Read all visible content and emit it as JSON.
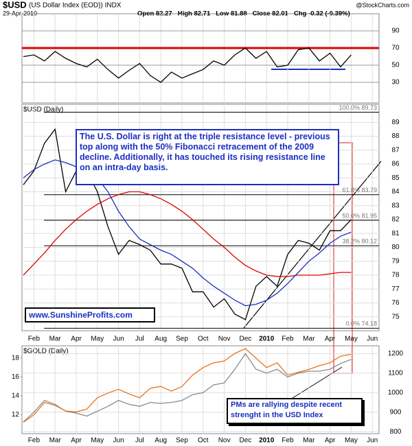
{
  "chart_data": [
    {
      "type": "line",
      "title": "$USD",
      "subtitle": "(US Dollar Index (EOD)) INDX",
      "date": "29-Apr-2010",
      "quote": [
        "Open 82.27",
        "High 82.71",
        "Low 81.88",
        "Close 82.01",
        "Chg -0.32 (-0.39%)"
      ],
      "source": "@StockCharts.com",
      "ylim": [
        6,
        110
      ],
      "yticks": [
        30,
        50,
        70,
        90
      ],
      "grid": true,
      "hlines": [
        {
          "value": 70,
          "color": "#e00000"
        }
      ],
      "series": [
        {
          "color": "#000000",
          "values": [
            60,
            62,
            55,
            66,
            58,
            52,
            48,
            57,
            45,
            35,
            44,
            52,
            38,
            30,
            42,
            35,
            40,
            45,
            55,
            50,
            62,
            70,
            58,
            66,
            48,
            50,
            68,
            70,
            55,
            64,
            48,
            62,
            null,
            null
          ]
        }
      ]
    },
    {
      "type": "line",
      "label": "$USD (Daily)",
      "categories": [
        null,
        "Feb",
        null,
        "Mar",
        null,
        "Apr",
        null,
        "May",
        null,
        "Jun",
        null,
        "Jul",
        null,
        "Aug",
        null,
        "Sep",
        null,
        "Oct",
        null,
        "Nov",
        null,
        "Dec",
        null,
        "2010",
        null,
        "Feb",
        null,
        "Mar",
        null,
        "Apr",
        null,
        "May",
        null,
        "Jun"
      ],
      "ylim": [
        74,
        90.3
      ],
      "yticks": [
        75,
        76,
        77,
        78,
        79,
        80,
        81,
        82,
        83,
        84,
        85,
        86,
        87,
        88,
        89
      ],
      "grid": true,
      "levels": [
        {
          "value": 89.73,
          "label": "100.0% 89.73"
        },
        {
          "value": 83.79,
          "label": "61.8% 83.79"
        },
        {
          "value": 81.95,
          "label": "50.0% 81.95"
        },
        {
          "value": 80.12,
          "label": "38.2% 80.12"
        },
        {
          "value": 74.18,
          "label": "0.0% 74.18"
        }
      ],
      "series": [
        {
          "color": "#000000",
          "values": [
            84.5,
            85.5,
            87.5,
            88.5,
            84.0,
            85.5,
            85.5,
            84.0,
            81.5,
            79.5,
            80.5,
            80.2,
            79.8,
            78.8,
            78.8,
            78.5,
            76.8,
            76.8,
            75.7,
            76.3,
            75.2,
            74.8,
            77.2,
            77.9,
            77.2,
            79.5,
            80.5,
            80.3,
            79.8,
            81.2,
            81.2,
            82.0,
            null,
            null
          ]
        },
        {
          "color": "#e00000",
          "values": [
            78,
            78.8,
            79.6,
            80.5,
            81.3,
            82.0,
            82.6,
            83.1,
            83.5,
            83.8,
            84.0,
            84.0,
            83.8,
            83.5,
            83.1,
            82.6,
            82.0,
            81.3,
            80.6,
            80.0,
            79.3,
            78.7,
            78.3,
            78.0,
            77.9,
            77.9,
            78.0,
            78.0,
            78.0,
            78.1,
            78.2,
            78.2,
            null,
            null
          ]
        },
        {
          "color": "#1a2fc0",
          "values": [
            85.0,
            85.6,
            86.0,
            86.3,
            86.1,
            85.8,
            85.5,
            85.0,
            84.0,
            82.6,
            81.5,
            80.6,
            80.2,
            79.8,
            79.5,
            79.0,
            78.5,
            77.8,
            77.2,
            76.7,
            76.2,
            75.8,
            75.9,
            76.2,
            76.7,
            77.4,
            78.2,
            79.0,
            79.6,
            80.3,
            80.8,
            81.1,
            null,
            null
          ]
        }
      ],
      "annotations": [
        "The U.S. Dollar is right at the triple resistance level - previous top along with the 50% Fibonacci retracement of the 2009 decline. Additionally, it has touched its rising resistance line on an intra-day basis.",
        "www.SunshineProfits.com"
      ]
    },
    {
      "type": "line",
      "label": "$GOLD (Daily)",
      "categories": [
        null,
        "Feb",
        null,
        "Mar",
        null,
        "Apr",
        null,
        "May",
        null,
        "Jun",
        null,
        "Jul",
        null,
        "Aug",
        null,
        "Sep",
        null,
        "Oct",
        null,
        "Nov",
        null,
        "Dec",
        null,
        "2010",
        null,
        "Feb",
        null,
        "Mar",
        null,
        "Apr",
        null,
        "May",
        null,
        "Jun"
      ],
      "ylim": [
        10,
        19.3
      ],
      "yticks": [
        12,
        14,
        16,
        18
      ],
      "y2lim": [
        790,
        1240
      ],
      "y2ticks": [
        800,
        900,
        1000,
        1100,
        1200
      ],
      "grid": true,
      "series": [
        {
          "color": "#8a8a8a",
          "axis": "y2",
          "values": [
            850,
            900,
            960,
            940,
            905,
            895,
            880,
            905,
            930,
            960,
            940,
            930,
            950,
            945,
            950,
            960,
            990,
            1000,
            1040,
            1050,
            1120,
            1200,
            1120,
            1100,
            1120,
            1080,
            1100,
            1110,
            1110,
            1120,
            1150,
            1170,
            null,
            null
          ]
        },
        {
          "color": "#e8741a",
          "values": [
            11.2,
            12.0,
            13.3,
            13.0,
            12.4,
            12.3,
            12.6,
            13.8,
            14.3,
            14.7,
            14.2,
            13.8,
            14.8,
            15.0,
            14.5,
            15.0,
            16.2,
            17.0,
            17.5,
            17.7,
            18.5,
            19.0,
            18.0,
            17.0,
            17.5,
            16.2,
            16.5,
            16.8,
            17.2,
            17.5,
            18.2,
            18.4,
            null,
            null
          ]
        }
      ],
      "annotations": [
        "PMs are rallying despite recent strenght in the USD Index"
      ]
    }
  ]
}
